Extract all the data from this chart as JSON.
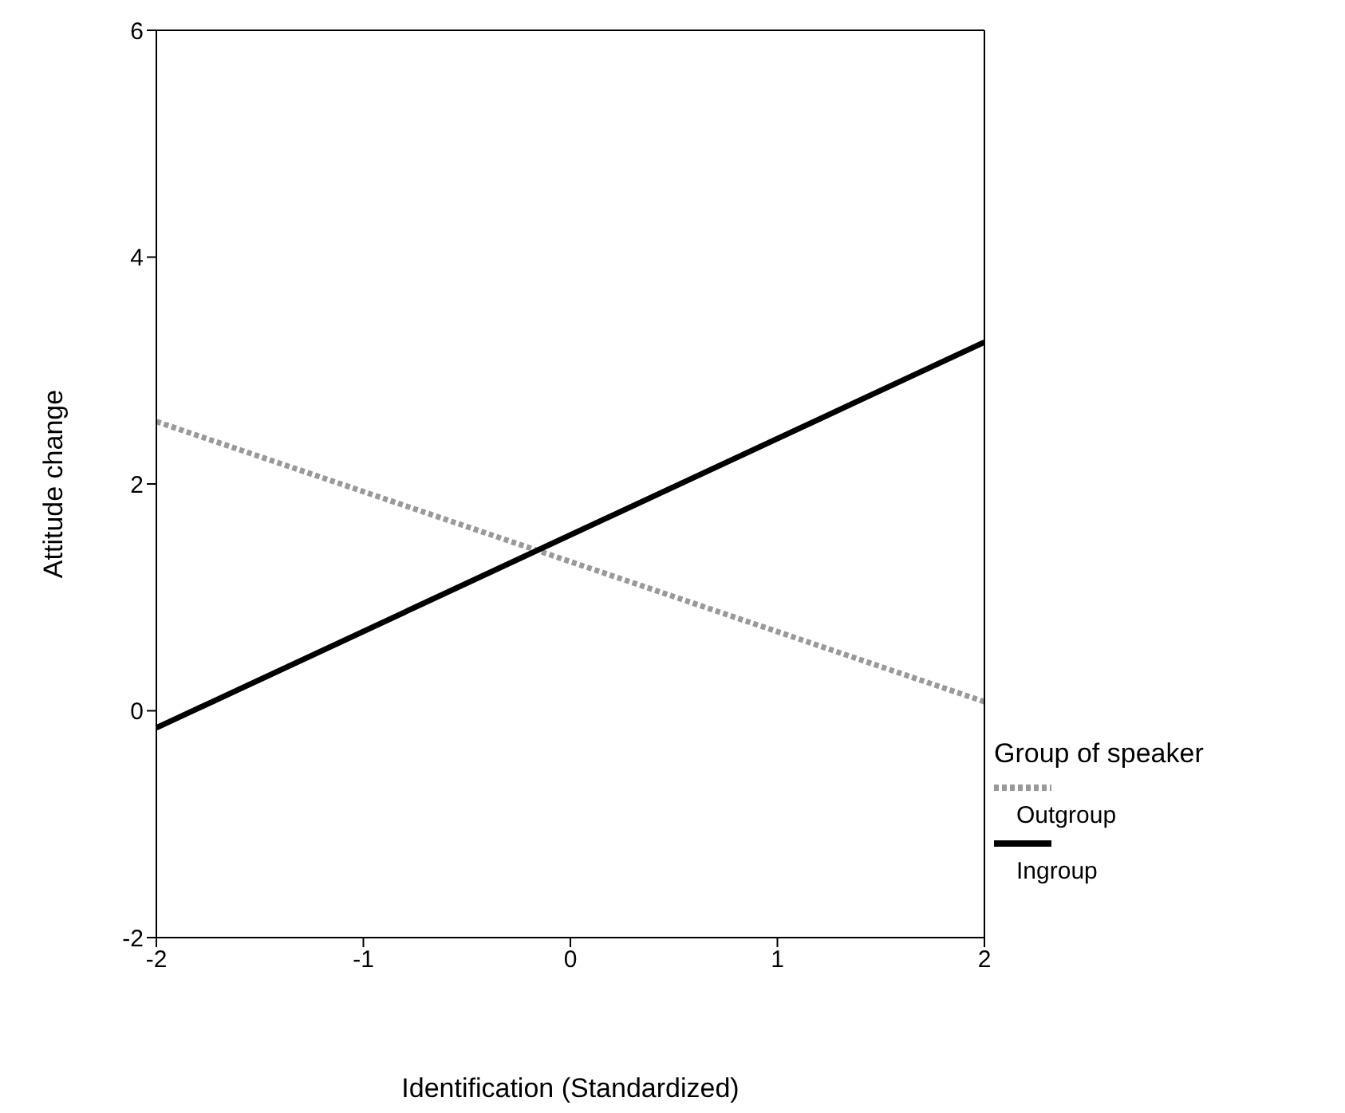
{
  "chart_data": {
    "type": "line",
    "xlabel": "Identification (Standardized)",
    "ylabel": "Attitude change",
    "legend_title": "Group of speaker",
    "x": [
      -2,
      2
    ],
    "series": [
      {
        "name": "Outgroup",
        "color": "#999999",
        "values": [
          2.55,
          0.08
        ],
        "line_style": "dotted"
      },
      {
        "name": "Ingroup",
        "color": "#000000",
        "values": [
          -0.15,
          3.25
        ],
        "line_style": "solid"
      }
    ],
    "xlim": [
      -2,
      2
    ],
    "xticks": [
      -2,
      -1,
      0,
      1,
      2
    ],
    "ylim": [
      -2,
      6
    ],
    "yticks": [
      -2,
      0,
      2,
      4,
      6
    ],
    "grid": false,
    "legend": "right",
    "marker": "none"
  }
}
